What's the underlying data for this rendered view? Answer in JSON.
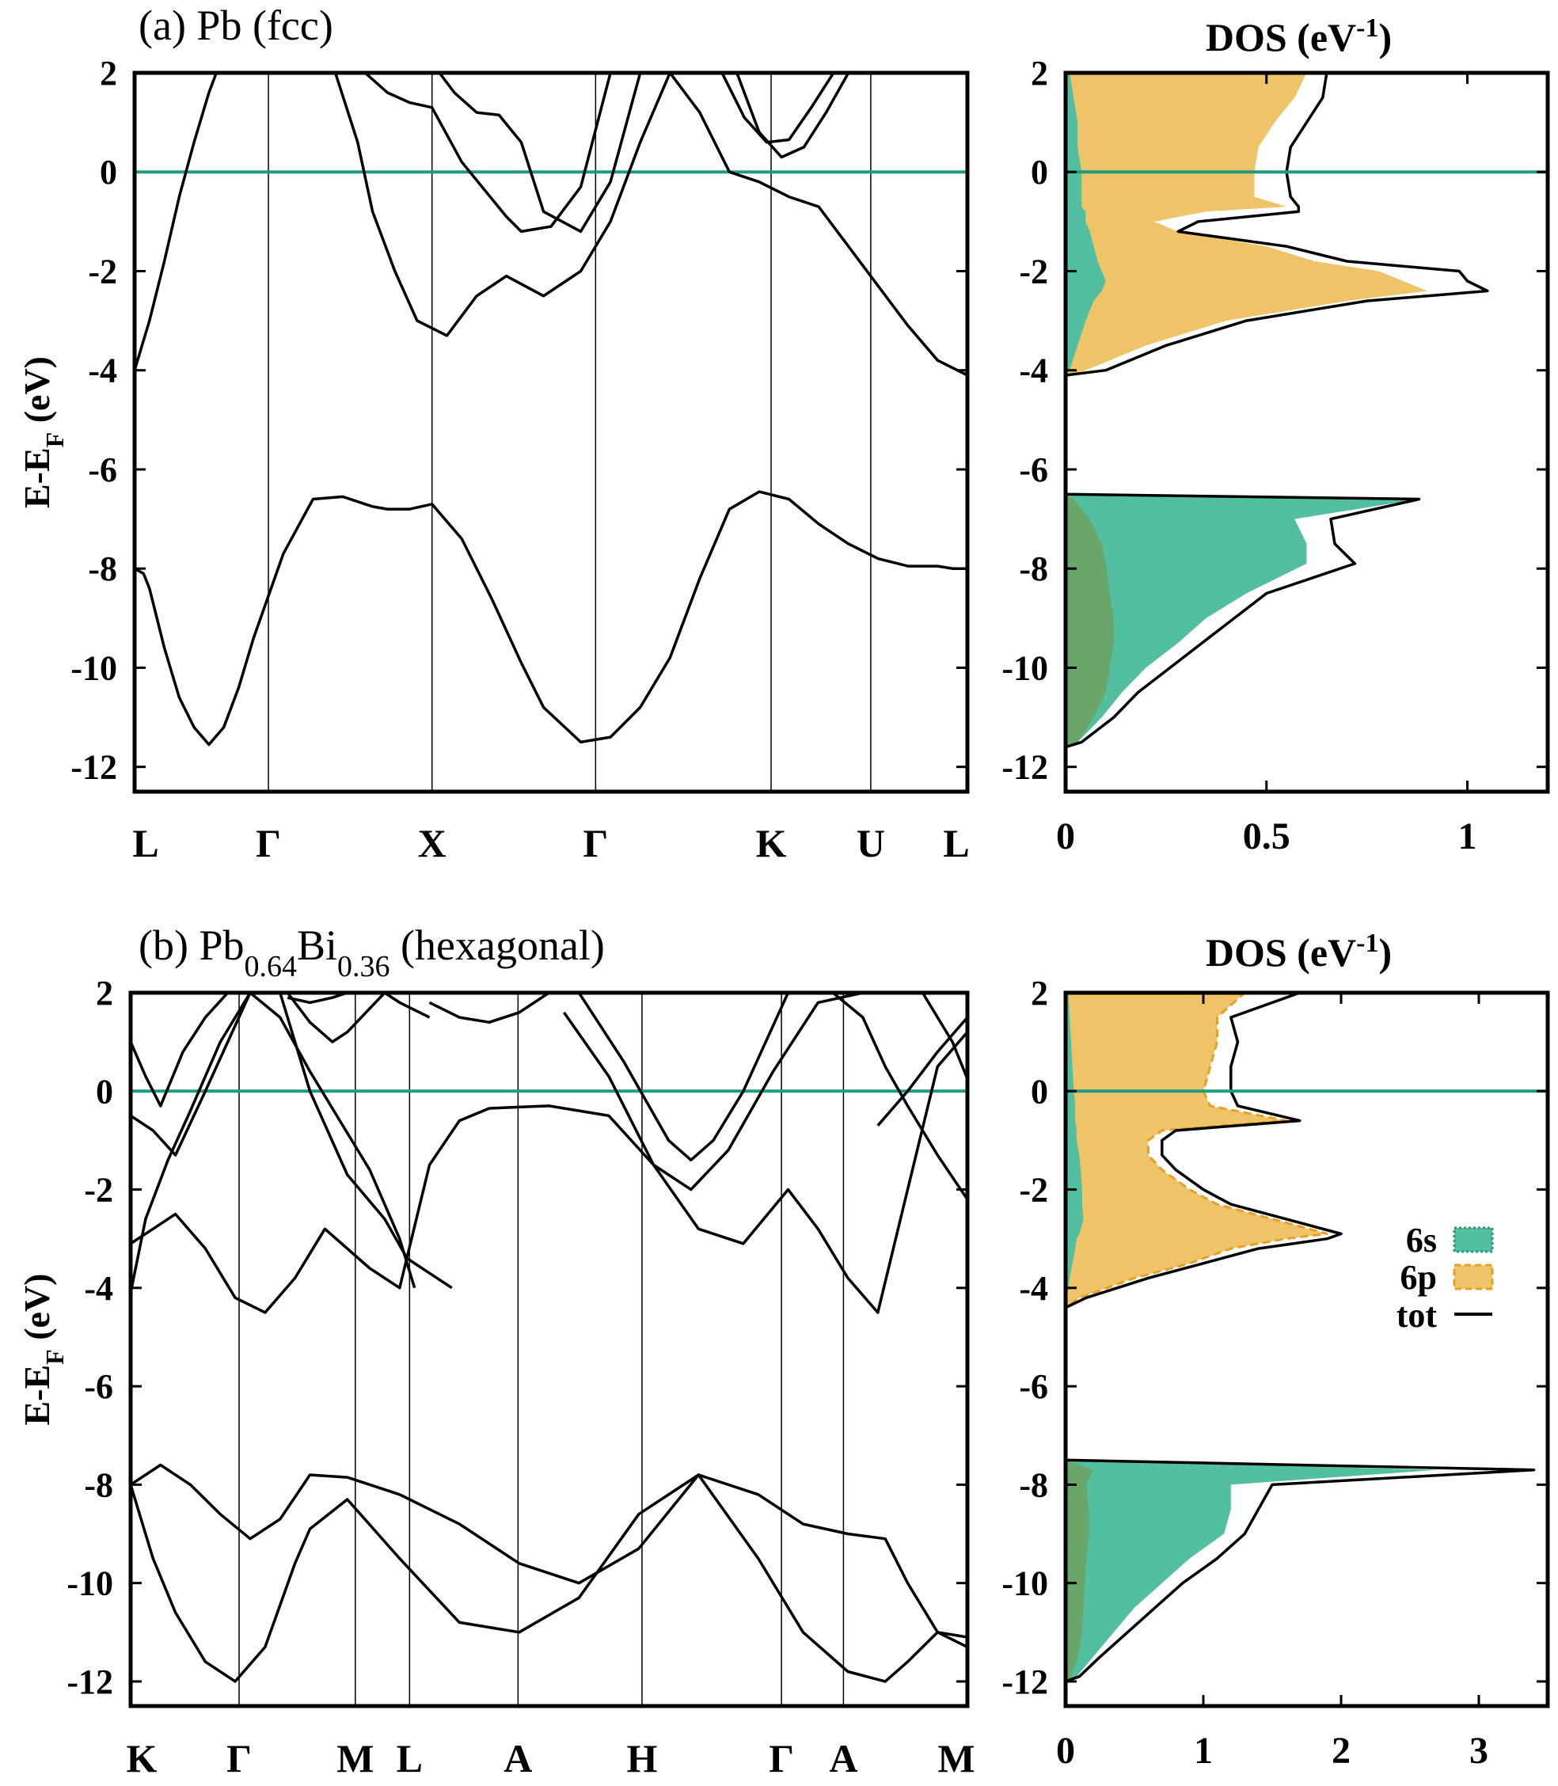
{
  "chart_data": [
    {
      "type": "line",
      "panel_label": "(a) Pb (fcc)",
      "plot": "band_structure",
      "ylabel": "E-E",
      "ylabel_sub": "F",
      "ylabel_suffix": " (eV)",
      "ylim": [
        -12.5,
        2
      ],
      "yticks": [
        2,
        0,
        -2,
        -4,
        -6,
        -8,
        -10,
        -12
      ],
      "kpath": [
        "L",
        "Γ",
        "X",
        "Γ",
        "K",
        "U",
        "L"
      ],
      "fermi_level": 0,
      "bands": [
        {
          "x": [
            0,
            0.06,
            0.1,
            0.15,
            0.2,
            0.25,
            0.3,
            0.4,
            0.5,
            0.6,
            0.7,
            0.8,
            1.0,
            1.2,
            1.4,
            1.6,
            1.7,
            1.85,
            2.0,
            2.2,
            2.4,
            2.6,
            2.75,
            3.0,
            3.2,
            3.4,
            3.6,
            3.8,
            4.0,
            4.2,
            4.4,
            4.6,
            4.8,
            5.0,
            5.2,
            5.4,
            5.5,
            5.6
          ],
          "y": [
            -8.0,
            -8.1,
            -8.4,
            -9.0,
            -9.6,
            -10.1,
            -10.6,
            -11.2,
            -11.55,
            -11.2,
            -10.4,
            -9.4,
            -7.7,
            -6.6,
            -6.55,
            -6.75,
            -6.8,
            -6.8,
            -6.7,
            -7.4,
            -8.6,
            -9.9,
            -10.8,
            -11.5,
            -11.4,
            -10.8,
            -9.8,
            -8.2,
            -6.8,
            -6.45,
            -6.6,
            -7.1,
            -7.5,
            -7.8,
            -7.95,
            -7.95,
            -8.0,
            -8.0
          ]
        },
        {
          "x": [
            0,
            0.1,
            0.2,
            0.3,
            0.4,
            0.5,
            0.55
          ],
          "y": [
            -4.0,
            -3.0,
            -1.8,
            -0.5,
            0.6,
            1.6,
            2.0
          ]
        },
        {
          "x": [
            1.35,
            1.5,
            1.6,
            1.75,
            1.9,
            2.1,
            2.3,
            2.5,
            2.75,
            3.0,
            3.2,
            3.4,
            3.6,
            3.8,
            4.0,
            4.2,
            4.4,
            4.6,
            4.8,
            5.0,
            5.2,
            5.4,
            5.6
          ],
          "y": [
            2.0,
            0.6,
            -0.8,
            -2.0,
            -3.0,
            -3.3,
            -2.5,
            -2.1,
            -2.5,
            -2.0,
            -1.0,
            0.6,
            2.0,
            1.2,
            0.0,
            -0.2,
            -0.5,
            -0.7,
            -1.5,
            -2.3,
            -3.1,
            -3.8,
            -4.1
          ]
        },
        {
          "x": [
            1.55,
            1.7,
            1.85,
            2.0,
            2.2,
            2.5,
            2.6,
            2.8,
            3.0,
            3.2
          ],
          "y": [
            2.0,
            1.6,
            1.4,
            1.3,
            0.2,
            -0.9,
            -1.2,
            -1.1,
            -0.3,
            2.0
          ]
        },
        {
          "x": [
            2.05,
            2.15,
            2.3,
            2.45,
            2.6,
            2.75,
            3.0,
            3.2,
            3.4
          ],
          "y": [
            2.0,
            1.6,
            1.2,
            1.15,
            0.6,
            -0.8,
            -1.2,
            -0.2,
            2.0
          ]
        },
        {
          "x": [
            4.05,
            4.2,
            4.35,
            4.5,
            4.65,
            4.8
          ],
          "y": [
            2.0,
            0.8,
            0.3,
            0.5,
            1.2,
            2.0
          ]
        },
        {
          "x": [
            3.95,
            4.1,
            4.25,
            4.4,
            4.55,
            4.7
          ],
          "y": [
            2.0,
            1.1,
            0.6,
            0.65,
            1.3,
            2.0
          ]
        }
      ]
    },
    {
      "type": "area",
      "plot": "dos",
      "title": "DOS (eV",
      "title_sup": "-1",
      "title_end": ")",
      "ylim": [
        -12.5,
        2
      ],
      "xlim": [
        0,
        1.2
      ],
      "xticks": [
        "0",
        "0.5",
        "1"
      ],
      "xtick_values": [
        0,
        0.5,
        1
      ],
      "yticks": [
        2,
        0,
        -2,
        -4,
        -6,
        -8,
        -10,
        -12
      ],
      "energy": [
        2.0,
        1.5,
        1.0,
        0.5,
        0.0,
        -0.5,
        -0.7,
        -0.8,
        -1.0,
        -1.2,
        -1.5,
        -1.8,
        -2.0,
        -2.2,
        -2.4,
        -2.6,
        -3.0,
        -3.5,
        -4.0,
        -4.1,
        -6.5,
        -6.6,
        -7.0,
        -7.5,
        -7.9,
        -8.5,
        -9.0,
        -9.5,
        -10.0,
        -10.5,
        -11.0,
        -11.5,
        -11.6
      ],
      "series": [
        {
          "name": "6s",
          "values": [
            0.01,
            0.02,
            0.03,
            0.03,
            0.04,
            0.04,
            0.04,
            0.05,
            0.05,
            0.06,
            0.07,
            0.08,
            0.09,
            0.1,
            0.09,
            0.07,
            0.05,
            0.03,
            0.01,
            0.0,
            0.0,
            0.88,
            0.57,
            0.6,
            0.6,
            0.45,
            0.35,
            0.28,
            0.2,
            0.14,
            0.09,
            0.03,
            0.0
          ]
        },
        {
          "name": "6s_part",
          "values": [
            0,
            0,
            0,
            0,
            0,
            0,
            0,
            0,
            0,
            0,
            0,
            0,
            0,
            0,
            0,
            0,
            0,
            0,
            0,
            0,
            0,
            0.02,
            0.06,
            0.09,
            0.1,
            0.11,
            0.12,
            0.12,
            0.11,
            0.1,
            0.07,
            0.03,
            0.0
          ]
        },
        {
          "name": "6p",
          "values": [
            0.6,
            0.57,
            0.52,
            0.48,
            0.47,
            0.47,
            0.55,
            0.35,
            0.22,
            0.28,
            0.5,
            0.62,
            0.78,
            0.84,
            0.9,
            0.7,
            0.4,
            0.2,
            0.05,
            0.0,
            0.0,
            0.0,
            0,
            0,
            0,
            0,
            0,
            0,
            0,
            0,
            0,
            0,
            0
          ]
        },
        {
          "name": "tot",
          "values": [
            0.65,
            0.64,
            0.6,
            0.56,
            0.55,
            0.56,
            0.58,
            0.58,
            0.33,
            0.28,
            0.55,
            0.7,
            0.98,
            1.0,
            1.05,
            0.75,
            0.45,
            0.25,
            0.1,
            0.0,
            0.0,
            0.88,
            0.66,
            0.67,
            0.72,
            0.5,
            0.42,
            0.34,
            0.26,
            0.18,
            0.12,
            0.04,
            0.0
          ]
        }
      ]
    },
    {
      "type": "line",
      "panel_label_pre": "(b) Pb",
      "panel_label_sub1": "0.64",
      "panel_label_mid": "Bi",
      "panel_label_sub2": "0.36",
      "panel_label_post": " (hexagonal)",
      "plot": "band_structure",
      "ylabel": "E-E",
      "ylabel_sub": "F",
      "ylabel_suffix": " (eV)",
      "ylim": [
        -12.5,
        2
      ],
      "yticks": [
        2,
        0,
        -2,
        -4,
        -6,
        -8,
        -10,
        -12
      ],
      "kpath": [
        "K",
        "Γ",
        "M",
        "L",
        "A",
        "H",
        "Γ",
        "A",
        "M"
      ],
      "fermi_level": 0,
      "bands": [
        {
          "x": [
            0,
            0.15,
            0.3,
            0.5,
            0.7,
            0.9,
            1.1,
            1.2,
            1.45,
            1.8,
            2.2,
            2.6,
            3.0,
            3.4,
            3.8,
            4.2,
            4.5,
            4.8,
            5.05,
            5.2,
            5.4,
            5.6,
            5.8,
            6.0
          ],
          "y": [
            -8.0,
            -9.5,
            -10.6,
            -11.6,
            -12.0,
            -11.3,
            -9.6,
            -8.9,
            -8.3,
            -9.5,
            -10.8,
            -11.0,
            -10.3,
            -8.6,
            -7.8,
            -9.5,
            -11.0,
            -11.8,
            -12.0,
            -11.6,
            -11.0,
            -11.1,
            -10.5,
            -8.7
          ]
        },
        {
          "x": [
            0,
            0.2,
            0.4,
            0.6,
            0.8,
            1.0,
            1.2,
            1.45,
            1.8,
            2.2,
            2.6,
            3.0,
            3.4,
            3.8,
            4.2,
            4.5,
            4.8,
            5.05,
            5.2,
            5.4,
            5.6,
            5.8,
            6.0
          ],
          "y": [
            -8.0,
            -7.6,
            -8.0,
            -8.6,
            -9.1,
            -8.7,
            -7.8,
            -7.85,
            -8.2,
            -8.8,
            -9.6,
            -10.0,
            -9.3,
            -7.8,
            -8.2,
            -8.8,
            -9.0,
            -9.1,
            -10.0,
            -11.0,
            -11.3,
            -9.8,
            -7.8
          ]
        },
        {
          "x": [
            0,
            0.15,
            0.3,
            0.5,
            0.7,
            0.9,
            1.1,
            1.3,
            1.6,
            1.8,
            2.0,
            2.2,
            2.4,
            2.8,
            3.2,
            3.5,
            3.8,
            4.1,
            4.4,
            4.6,
            4.8,
            5.0,
            5.2,
            5.4,
            5.6,
            5.8,
            6.0
          ],
          "y": [
            -3.1,
            -2.8,
            -2.5,
            -3.2,
            -4.2,
            -4.5,
            -3.8,
            -2.8,
            -3.6,
            -4.0,
            -1.5,
            -0.6,
            -0.35,
            -0.3,
            -0.5,
            -1.5,
            -2.8,
            -3.1,
            -2.0,
            -2.8,
            -3.8,
            -4.5,
            -2.0,
            0.5,
            1.2,
            -1.5,
            -3.2
          ]
        },
        {
          "x": [
            0,
            0.1,
            0.25,
            0.4,
            0.6,
            0.8,
            1.0,
            1.2,
            1.45,
            1.7,
            1.85,
            2.0,
            2.15
          ],
          "y": [
            -4.1,
            -2.6,
            -1.4,
            -0.4,
            1.0,
            2.0,
            2.0,
            0.0,
            -1.7,
            -2.6,
            -3.4,
            -3.7,
            -4.0
          ]
        },
        {
          "x": [
            0,
            0.15,
            0.3,
            0.5,
            0.65,
            0.8,
            1.0,
            1.2,
            1.4,
            1.6,
            1.8,
            1.9
          ],
          "y": [
            -0.5,
            -0.8,
            -1.3,
            0.0,
            1.0,
            2.0,
            1.5,
            0.4,
            -0.6,
            -1.6,
            -3.0,
            -4.0
          ]
        },
        {
          "x": [
            0,
            0.1,
            0.2,
            0.35,
            0.5,
            0.65,
            0.8
          ],
          "y": [
            1.0,
            0.3,
            -0.3,
            0.8,
            1.5,
            2.0,
            2.0
          ]
        },
        {
          "x": [
            1.05,
            1.2,
            1.35,
            1.45,
            1.7,
            1.8,
            2.0
          ],
          "y": [
            2.0,
            1.4,
            1.0,
            1.2,
            2.0,
            1.8,
            1.5
          ]
        },
        {
          "x": [
            1.05,
            1.2,
            1.35,
            1.45,
            1.55
          ],
          "y": [
            1.9,
            1.8,
            1.9,
            2.0,
            2.0
          ]
        },
        {
          "x": [
            2.0,
            2.2,
            2.4,
            2.6,
            2.8
          ],
          "y": [
            1.8,
            1.5,
            1.4,
            1.6,
            2.0
          ]
        },
        {
          "x": [
            3.0,
            3.3,
            3.6,
            3.75,
            3.9,
            4.1,
            4.4,
            4.7,
            5.0
          ],
          "y": [
            2.0,
            0.6,
            -1.0,
            -1.4,
            -1.0,
            0.0,
            2.0,
            2.0,
            2.0
          ]
        },
        {
          "x": [
            2.9,
            3.2,
            3.5,
            3.75,
            4.0,
            4.3,
            4.6,
            4.9
          ],
          "y": [
            1.6,
            0.3,
            -1.5,
            -2.0,
            -1.2,
            0.4,
            1.8,
            2.0
          ]
        },
        {
          "x": [
            4.7,
            4.9,
            5.05,
            5.2,
            5.4,
            5.6,
            5.8,
            6.0
          ],
          "y": [
            2.0,
            1.5,
            0.5,
            -0.3,
            -1.3,
            -2.2,
            -2.8,
            -3.0
          ]
        },
        {
          "x": [
            5.0,
            5.2,
            5.4,
            5.6,
            5.8,
            6.0
          ],
          "y": [
            -0.7,
            0.0,
            0.8,
            1.5,
            2.0,
            2.0
          ]
        },
        {
          "x": [
            5.3,
            5.5,
            5.7,
            5.85,
            6.0
          ],
          "y": [
            2.0,
            1.0,
            -0.5,
            -1.0,
            -0.8
          ]
        },
        {
          "x": [
            5.6,
            5.8,
            5.95,
            6.0
          ],
          "y": [
            2.0,
            1.8,
            1.7,
            1.2
          ]
        }
      ]
    },
    {
      "type": "area",
      "plot": "dos",
      "title": "DOS (eV",
      "title_sup": "-1",
      "title_end": ")",
      "ylim": [
        -12.5,
        2
      ],
      "xlim": [
        0,
        3.5
      ],
      "xticks": [
        "0",
        "1",
        "2",
        "3"
      ],
      "xtick_values": [
        0,
        1,
        2,
        3
      ],
      "yticks": [
        2,
        0,
        -2,
        -4,
        -6,
        -8,
        -10,
        -12
      ],
      "legend": [
        "6s",
        "6p",
        "tot"
      ],
      "legend_position": "right",
      "energy": [
        2.0,
        1.5,
        1.0,
        0.5,
        0.0,
        -0.3,
        -0.6,
        -0.8,
        -1.0,
        -1.3,
        -1.6,
        -2.0,
        -2.3,
        -2.6,
        -2.9,
        -3.0,
        -3.2,
        -3.5,
        -3.8,
        -4.2,
        -4.4,
        -7.5,
        -7.7,
        -8.0,
        -8.5,
        -9.0,
        -9.5,
        -10.0,
        -10.5,
        -11.0,
        -11.5,
        -11.9,
        -12.0
      ],
      "series": [
        {
          "name": "6s",
          "values": [
            0.02,
            0.03,
            0.04,
            0.05,
            0.06,
            0.07,
            0.07,
            0.08,
            0.08,
            0.1,
            0.11,
            0.12,
            0.12,
            0.13,
            0.1,
            0.08,
            0.07,
            0.05,
            0.03,
            0.01,
            0.0,
            0.0,
            2.7,
            1.2,
            1.2,
            1.15,
            0.9,
            0.7,
            0.5,
            0.35,
            0.2,
            0.08,
            0.0
          ]
        },
        {
          "name": "6s_part",
          "values": [
            0,
            0,
            0,
            0,
            0,
            0,
            0,
            0,
            0,
            0,
            0,
            0,
            0,
            0,
            0,
            0,
            0,
            0,
            0,
            0,
            0,
            0,
            0.2,
            0.15,
            0.17,
            0.17,
            0.15,
            0.14,
            0.13,
            0.12,
            0.09,
            0.04,
            0.0
          ]
        },
        {
          "name": "6p",
          "values": [
            1.3,
            1.1,
            1.1,
            1.05,
            1.0,
            1.05,
            1.6,
            0.7,
            0.6,
            0.6,
            0.7,
            0.9,
            1.1,
            1.5,
            1.9,
            1.6,
            1.2,
            0.9,
            0.5,
            0.1,
            0.0,
            0.0,
            0,
            0,
            0,
            0,
            0,
            0,
            0,
            0,
            0,
            0,
            0
          ]
        },
        {
          "name": "tot",
          "values": [
            1.7,
            1.2,
            1.25,
            1.2,
            1.2,
            1.25,
            1.7,
            0.8,
            0.7,
            0.7,
            0.8,
            1.0,
            1.2,
            1.6,
            2.0,
            1.9,
            1.4,
            1.0,
            0.6,
            0.15,
            0.0,
            0.0,
            3.4,
            1.5,
            1.4,
            1.3,
            1.1,
            0.85,
            0.65,
            0.45,
            0.25,
            0.1,
            0.0
          ]
        }
      ]
    }
  ],
  "colors": {
    "s_fill": "#52c0a0",
    "s_fill_dark": "#6aa56a",
    "p_fill": "#efc468",
    "p_edge": "#e8a020",
    "fermi": "#1e9c80",
    "line": "#000000"
  }
}
